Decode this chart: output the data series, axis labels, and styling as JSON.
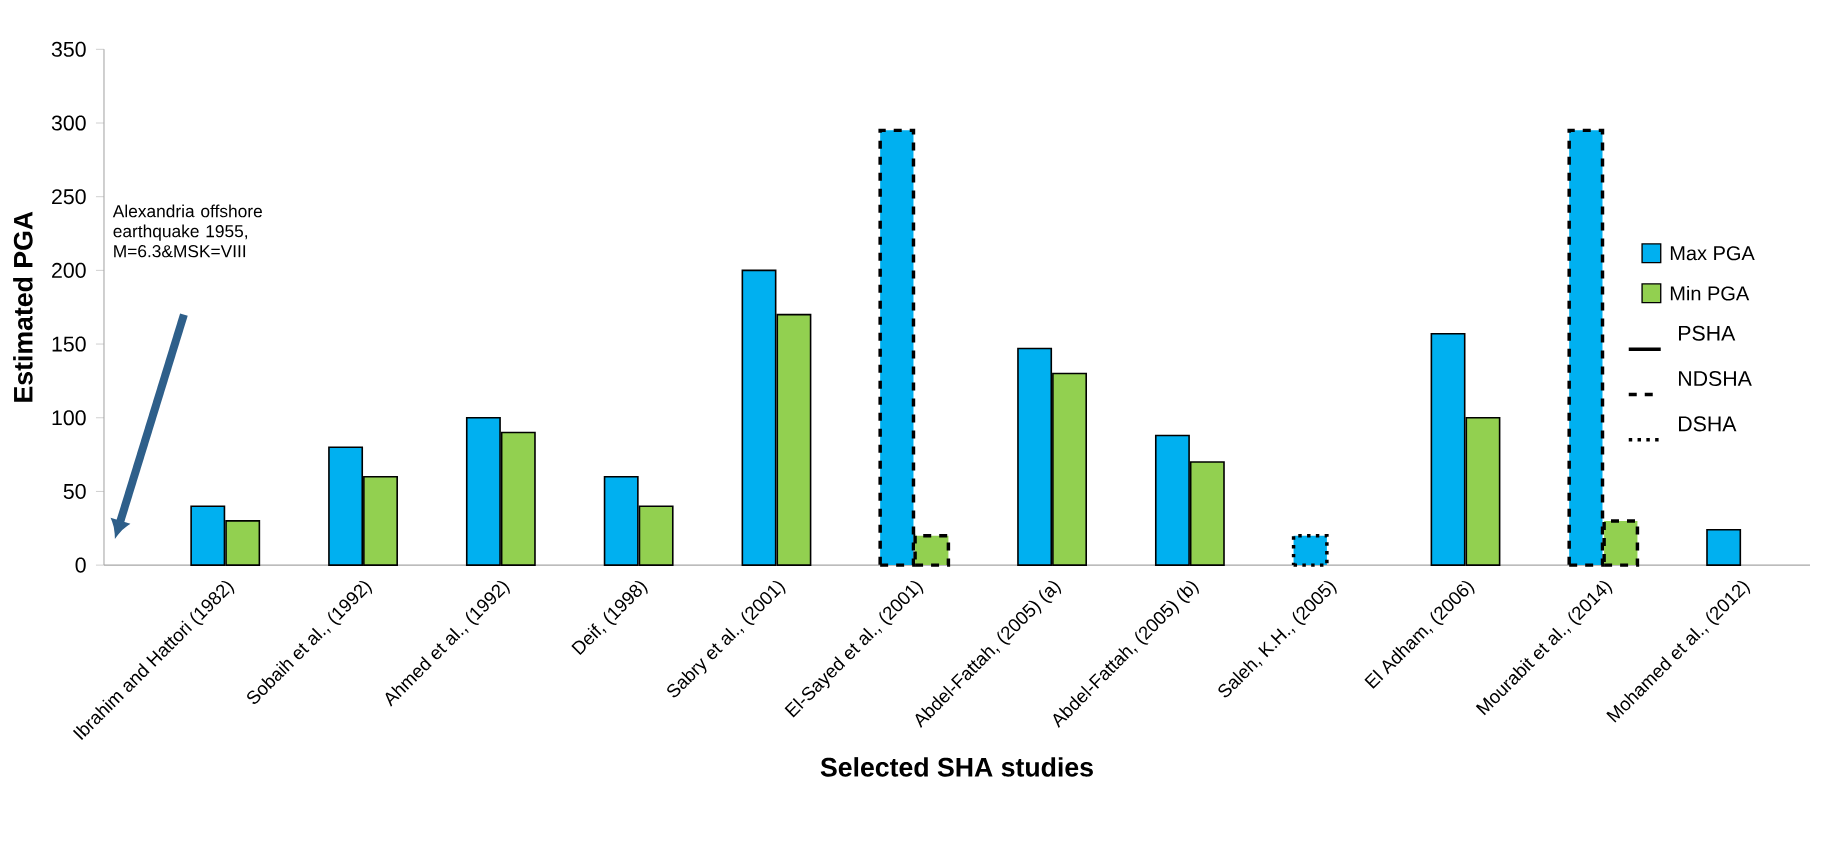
{
  "chart_data": {
    "type": "bar",
    "xlabel": "Selected SHA studies",
    "ylabel": "Estimated PGA",
    "categories": [
      "Ibrahim and Hattori (1982)",
      "Sobaih et al., (1992)",
      "Ahmed et al., (1992)",
      "Deif, (1998)",
      "Sabry et al., (2001)",
      "El-Sayed et al., (2001)",
      "Abdel-Fattah, (2005) (a)",
      "Abdel-Fattah, (2005) (b)",
      "Saleh, K.H., (2005)",
      "El Adham,  (2006)",
      "Mourabit et al., (2014)",
      "Mohamed et al., (2012)"
    ],
    "series": [
      {
        "name": "Max PGA",
        "color": "#00b0f0",
        "line_style": "solid",
        "values": [
          40,
          80,
          100,
          60,
          200,
          null,
          147,
          88,
          null,
          157,
          null,
          24
        ]
      },
      {
        "name": "Min PGA",
        "color": "#92d050",
        "line_style": "solid",
        "values": [
          30,
          60,
          90,
          40,
          170,
          null,
          130,
          70,
          null,
          100,
          null,
          null
        ]
      },
      {
        "color": "#00b0f0",
        "line_style": "dashed",
        "values": [
          null,
          null,
          null,
          null,
          null,
          295,
          null,
          null,
          null,
          null,
          295,
          null
        ]
      },
      {
        "color": "#92d050",
        "line_style": "dashed",
        "values": [
          null,
          null,
          null,
          null,
          null,
          20,
          null,
          null,
          null,
          null,
          30,
          null
        ]
      },
      {
        "color": "#00b0f0",
        "line_style": "dotted",
        "values": [
          null,
          null,
          null,
          null,
          null,
          null,
          null,
          null,
          20,
          null,
          null,
          null
        ]
      }
    ],
    "ylim": [
      0,
      350
    ],
    "yticks": [
      0,
      50,
      100,
      150,
      200,
      250,
      300,
      350
    ],
    "grid": false,
    "legend": "right",
    "annotations": [
      "Alexandria offshore earthquake 1955, M=6.3&MSK=VIII",
      "PSHA",
      "NDSHA",
      "DSHA"
    ]
  }
}
